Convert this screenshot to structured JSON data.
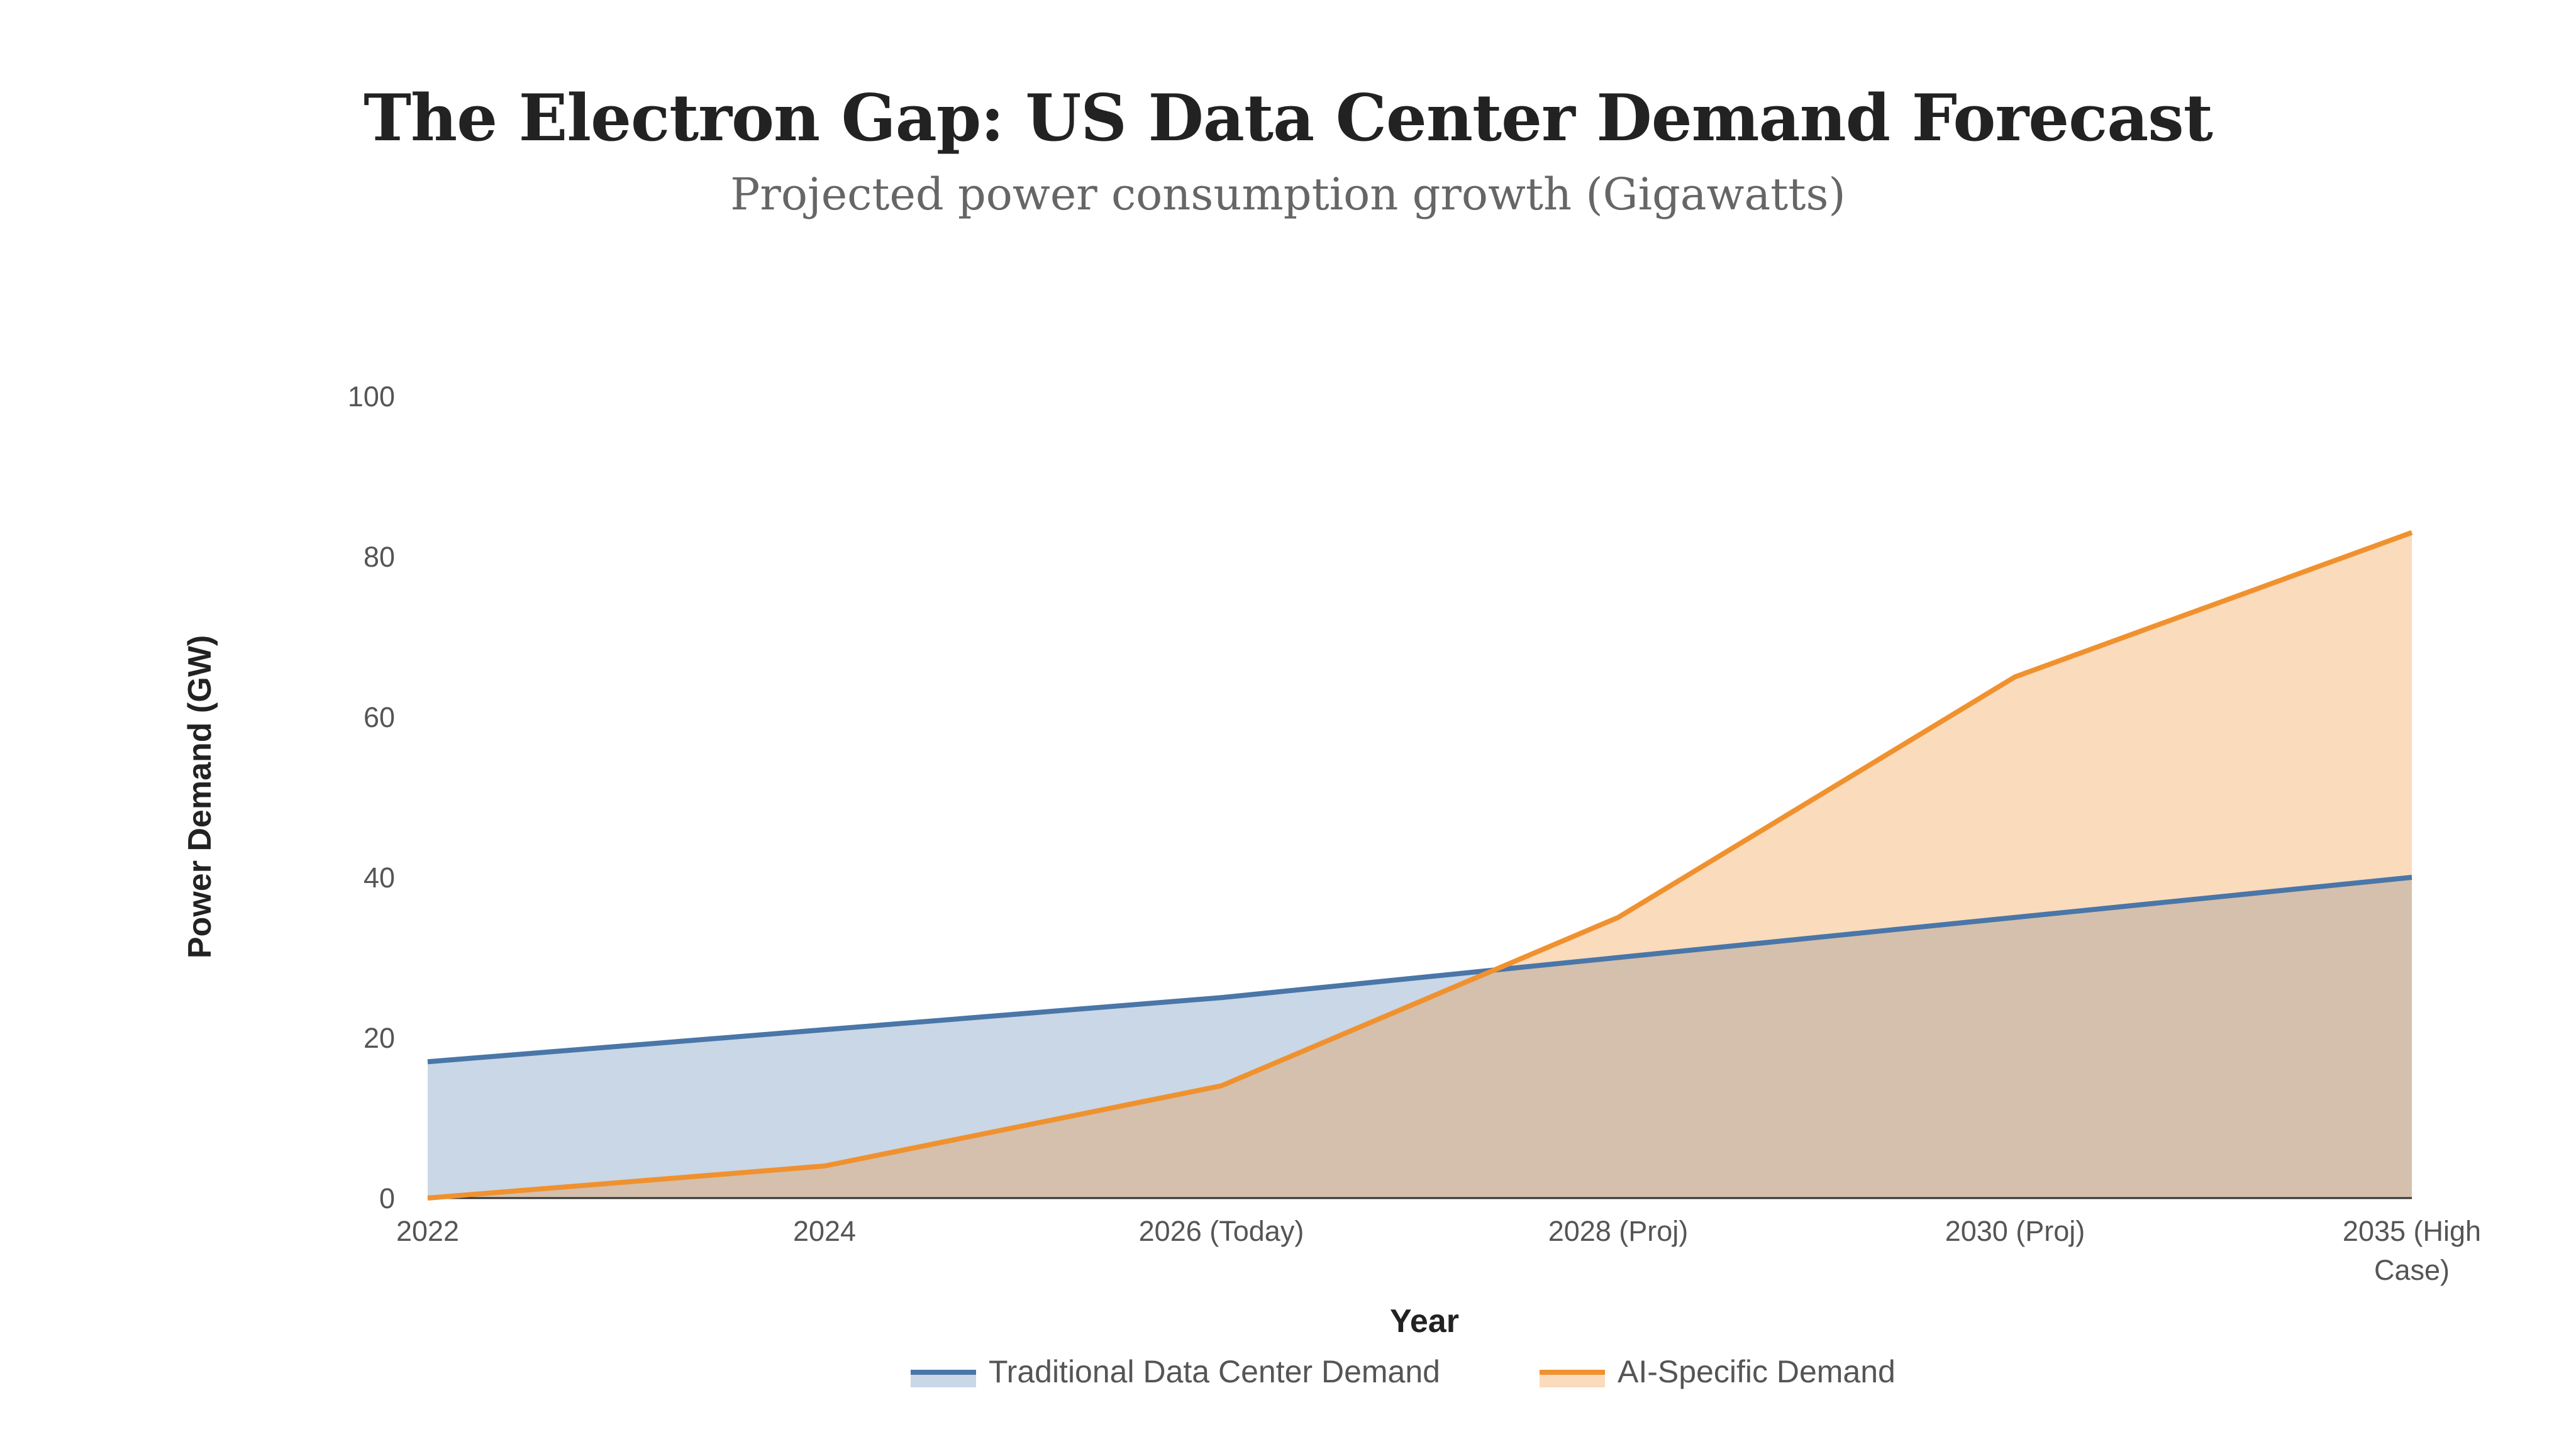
{
  "title": "The Electron Gap: US Data Center Demand Forecast",
  "subtitle": "Projected power consumption growth (Gigawatts)",
  "colors": {
    "traditional_line": "#4a76a8",
    "traditional_fill": "#c9d7e6",
    "ai_line": "#f0912f",
    "ai_fill": "#fadbbc",
    "overlap_fill": "#d4c0ad",
    "baseline": "#333333"
  },
  "chart_data": {
    "type": "area",
    "xlabel": "Year",
    "ylabel": "Power Demand (GW)",
    "ylim": [
      0,
      100
    ],
    "yticks": [
      "0",
      "20",
      "40",
      "60",
      "80",
      "100"
    ],
    "categories": [
      [
        "2022"
      ],
      [
        "2024"
      ],
      [
        "2026 (Today)"
      ],
      [
        "2028 (Proj)"
      ],
      [
        "2030 (Proj)"
      ],
      [
        "2035 (High",
        "Case)"
      ]
    ],
    "series": [
      {
        "name": "Traditional Data Center Demand",
        "values": [
          17,
          21,
          25,
          30,
          35,
          40
        ]
      },
      {
        "name": "AI-Specific Demand",
        "values": [
          0,
          4,
          14,
          35,
          65,
          83
        ]
      }
    ],
    "legend_position": "bottom",
    "grid": false
  }
}
